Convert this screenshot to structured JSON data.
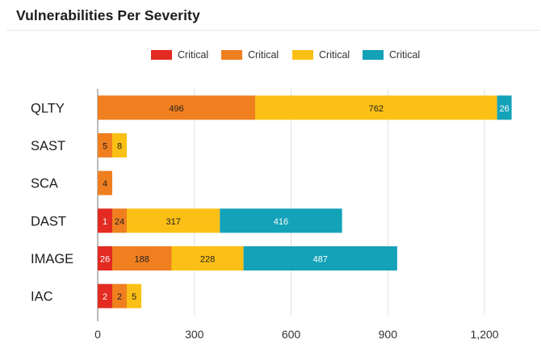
{
  "colors": {
    "series": [
      "#e32b22",
      "#f07f20",
      "#fbc015",
      "#13a2b8"
    ],
    "grid": "#e0e0e0",
    "axis": "#777777",
    "text": "#1c1c1c"
  },
  "chart_data": {
    "type": "bar",
    "orientation": "horizontal",
    "stacked": true,
    "title": "Vulnerabilities Per Severity",
    "xlabel": "",
    "ylabel": "",
    "xlim": [
      0,
      1300
    ],
    "xticks": [
      0,
      300,
      600,
      900,
      1200
    ],
    "xtick_labels": [
      "0",
      "300",
      "600",
      "900",
      "1,200"
    ],
    "grid": true,
    "legend_position": "top-center",
    "categories": [
      "QLTY",
      "SAST",
      "SCA",
      "DAST",
      "IMAGE",
      "IAC"
    ],
    "series": [
      {
        "name": "Critical",
        "values": [
          0,
          0,
          0,
          1,
          26,
          2
        ]
      },
      {
        "name": "Critical",
        "values": [
          496,
          5,
          4,
          24,
          188,
          2
        ]
      },
      {
        "name": "Critical",
        "values": [
          762,
          8,
          0,
          317,
          228,
          5
        ]
      },
      {
        "name": "Critical",
        "values": [
          26,
          0,
          0,
          416,
          487,
          0
        ]
      }
    ],
    "display_min_values": [
      44,
      44,
      44,
      44,
      44,
      44
    ]
  }
}
